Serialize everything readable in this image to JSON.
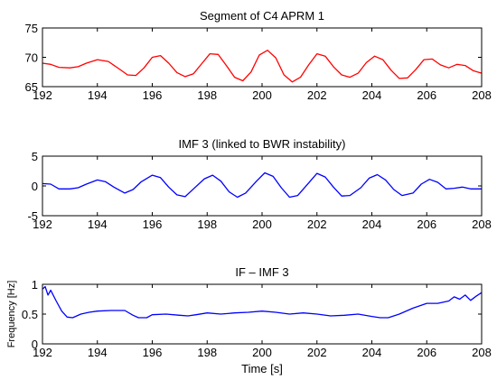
{
  "chart_data": [
    {
      "type": "line",
      "title": "Segment of C4 APRM 1",
      "xlabel": "",
      "ylabel": "",
      "xlim": [
        192,
        208
      ],
      "ylim": [
        65,
        75
      ],
      "xticks": [
        "192",
        "194",
        "196",
        "198",
        "200",
        "202",
        "204",
        "206",
        "208"
      ],
      "yticks": [
        "65",
        "70",
        "75"
      ],
      "grid": false,
      "series": [
        {
          "color": "#ff0000",
          "x": [
            192.0,
            192.3,
            192.6,
            193.0,
            193.3,
            193.6,
            194.0,
            194.4,
            194.8,
            195.1,
            195.4,
            195.7,
            196.0,
            196.3,
            196.6,
            196.9,
            197.2,
            197.5,
            197.8,
            198.1,
            198.4,
            198.7,
            199.0,
            199.3,
            199.6,
            199.9,
            200.2,
            200.5,
            200.8,
            201.1,
            201.4,
            201.7,
            202.0,
            202.3,
            202.6,
            202.9,
            203.2,
            203.5,
            203.8,
            204.1,
            204.4,
            204.7,
            205.0,
            205.3,
            205.6,
            205.9,
            206.2,
            206.5,
            206.8,
            207.1,
            207.4,
            207.7,
            208.0
          ],
          "y": [
            69.0,
            68.8,
            68.3,
            68.2,
            68.4,
            69.0,
            69.6,
            69.3,
            68.0,
            67.0,
            66.9,
            68.2,
            70.0,
            70.3,
            69.0,
            67.4,
            66.7,
            67.2,
            68.9,
            70.6,
            70.5,
            68.6,
            66.6,
            66.0,
            67.5,
            70.4,
            71.2,
            69.9,
            67.0,
            65.8,
            66.6,
            68.7,
            70.6,
            70.2,
            68.4,
            67.0,
            66.6,
            67.3,
            69.1,
            70.2,
            69.6,
            67.8,
            66.4,
            66.5,
            67.9,
            69.6,
            69.7,
            68.7,
            68.2,
            68.8,
            68.6,
            67.7,
            67.3
          ]
        }
      ]
    },
    {
      "type": "line",
      "title": "IMF 3 (linked to BWR instability)",
      "xlabel": "",
      "ylabel": "",
      "xlim": [
        192,
        208
      ],
      "ylim": [
        -5,
        5
      ],
      "xticks": [
        "192",
        "194",
        "196",
        "198",
        "200",
        "202",
        "204",
        "206",
        "208"
      ],
      "yticks": [
        "-5",
        "0",
        "5"
      ],
      "grid": false,
      "series": [
        {
          "color": "#0000ff",
          "x": [
            192.0,
            192.3,
            192.6,
            193.0,
            193.3,
            193.6,
            194.0,
            194.3,
            194.6,
            195.0,
            195.3,
            195.6,
            196.0,
            196.3,
            196.6,
            196.9,
            197.2,
            197.5,
            197.9,
            198.2,
            198.5,
            198.8,
            199.1,
            199.4,
            199.8,
            200.1,
            200.4,
            200.7,
            201.0,
            201.3,
            201.7,
            202.0,
            202.3,
            202.6,
            202.9,
            203.2,
            203.6,
            203.9,
            204.2,
            204.5,
            204.8,
            205.1,
            205.5,
            205.8,
            206.1,
            206.4,
            206.7,
            207.0,
            207.3,
            207.6,
            208.0
          ],
          "y": [
            0.4,
            0.3,
            -0.5,
            -0.5,
            -0.3,
            0.3,
            1.0,
            0.7,
            -0.2,
            -1.2,
            -0.6,
            0.7,
            1.8,
            1.4,
            -0.2,
            -1.5,
            -1.8,
            -0.5,
            1.2,
            1.8,
            0.8,
            -1.0,
            -1.9,
            -1.2,
            0.8,
            2.2,
            1.6,
            -0.3,
            -1.9,
            -1.6,
            0.5,
            2.1,
            1.5,
            -0.2,
            -1.7,
            -1.6,
            -0.3,
            1.3,
            1.9,
            1.0,
            -0.6,
            -1.6,
            -1.2,
            0.3,
            1.1,
            0.6,
            -0.5,
            -0.4,
            -0.2,
            -0.5,
            -0.5
          ]
        }
      ]
    },
    {
      "type": "line",
      "title": "IF – IMF 3",
      "xlabel": "Time   [s]",
      "ylabel": "Frequency   [Hz]",
      "xlim": [
        192,
        208
      ],
      "ylim": [
        0,
        1
      ],
      "xticks": [
        "192",
        "194",
        "196",
        "198",
        "200",
        "202",
        "204",
        "206",
        "208"
      ],
      "yticks": [
        "0",
        "0.5",
        "1"
      ],
      "grid": false,
      "series": [
        {
          "color": "#0000ff",
          "x": [
            192.0,
            192.1,
            192.2,
            192.3,
            192.5,
            192.7,
            192.9,
            193.1,
            193.4,
            193.7,
            194.0,
            194.5,
            195.0,
            195.3,
            195.5,
            195.8,
            196.0,
            196.5,
            197.0,
            197.3,
            197.6,
            198.0,
            198.5,
            199.0,
            199.5,
            200.0,
            200.5,
            201.0,
            201.5,
            202.0,
            202.5,
            203.0,
            203.5,
            204.0,
            204.3,
            204.6,
            205.0,
            205.5,
            206.0,
            206.4,
            206.8,
            207.0,
            207.2,
            207.4,
            207.6,
            207.8,
            208.0
          ],
          "y": [
            0.92,
            0.96,
            0.82,
            0.9,
            0.72,
            0.55,
            0.45,
            0.44,
            0.5,
            0.53,
            0.55,
            0.56,
            0.56,
            0.48,
            0.44,
            0.44,
            0.49,
            0.5,
            0.48,
            0.47,
            0.49,
            0.52,
            0.5,
            0.52,
            0.53,
            0.55,
            0.53,
            0.5,
            0.52,
            0.5,
            0.47,
            0.48,
            0.5,
            0.46,
            0.44,
            0.44,
            0.5,
            0.6,
            0.68,
            0.68,
            0.72,
            0.79,
            0.75,
            0.82,
            0.73,
            0.8,
            0.86
          ]
        }
      ]
    }
  ]
}
